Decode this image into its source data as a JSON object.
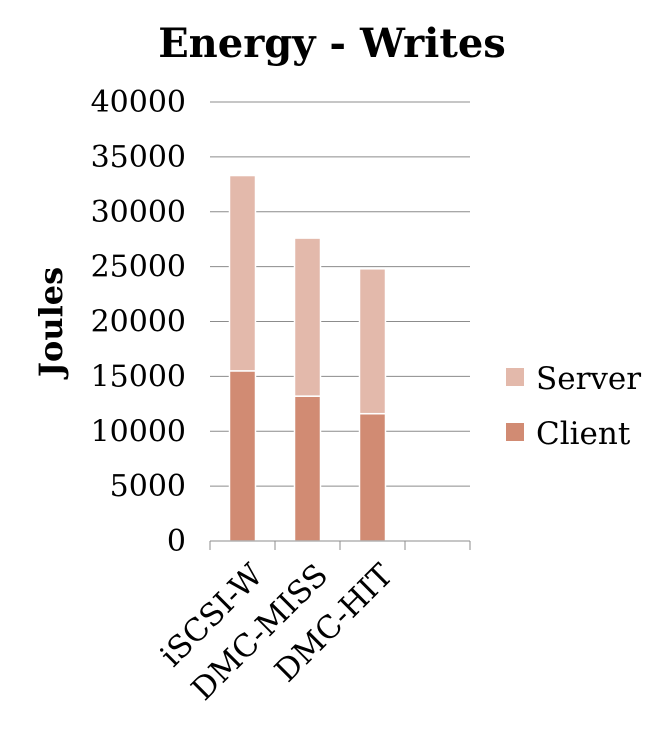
{
  "chart_data": {
    "type": "bar",
    "stacked": true,
    "title": "Energy - Writes",
    "ylabel": "Joules",
    "xlabel": "",
    "categories": [
      "iSCSI-W",
      "DMC-MISS",
      "DMC-HIT"
    ],
    "series": [
      {
        "name": "Client",
        "values": [
          15500,
          13200,
          11600
        ],
        "color": "#d18b73"
      },
      {
        "name": "Server",
        "values": [
          17800,
          14400,
          13200
        ],
        "color": "#e3b9ab"
      }
    ],
    "ylim": [
      0,
      40000
    ],
    "yticks": [
      "0",
      "5000",
      "10000",
      "15000",
      "20000",
      "25000",
      "30000",
      "35000",
      "40000"
    ],
    "grid": true,
    "legend": "right"
  }
}
